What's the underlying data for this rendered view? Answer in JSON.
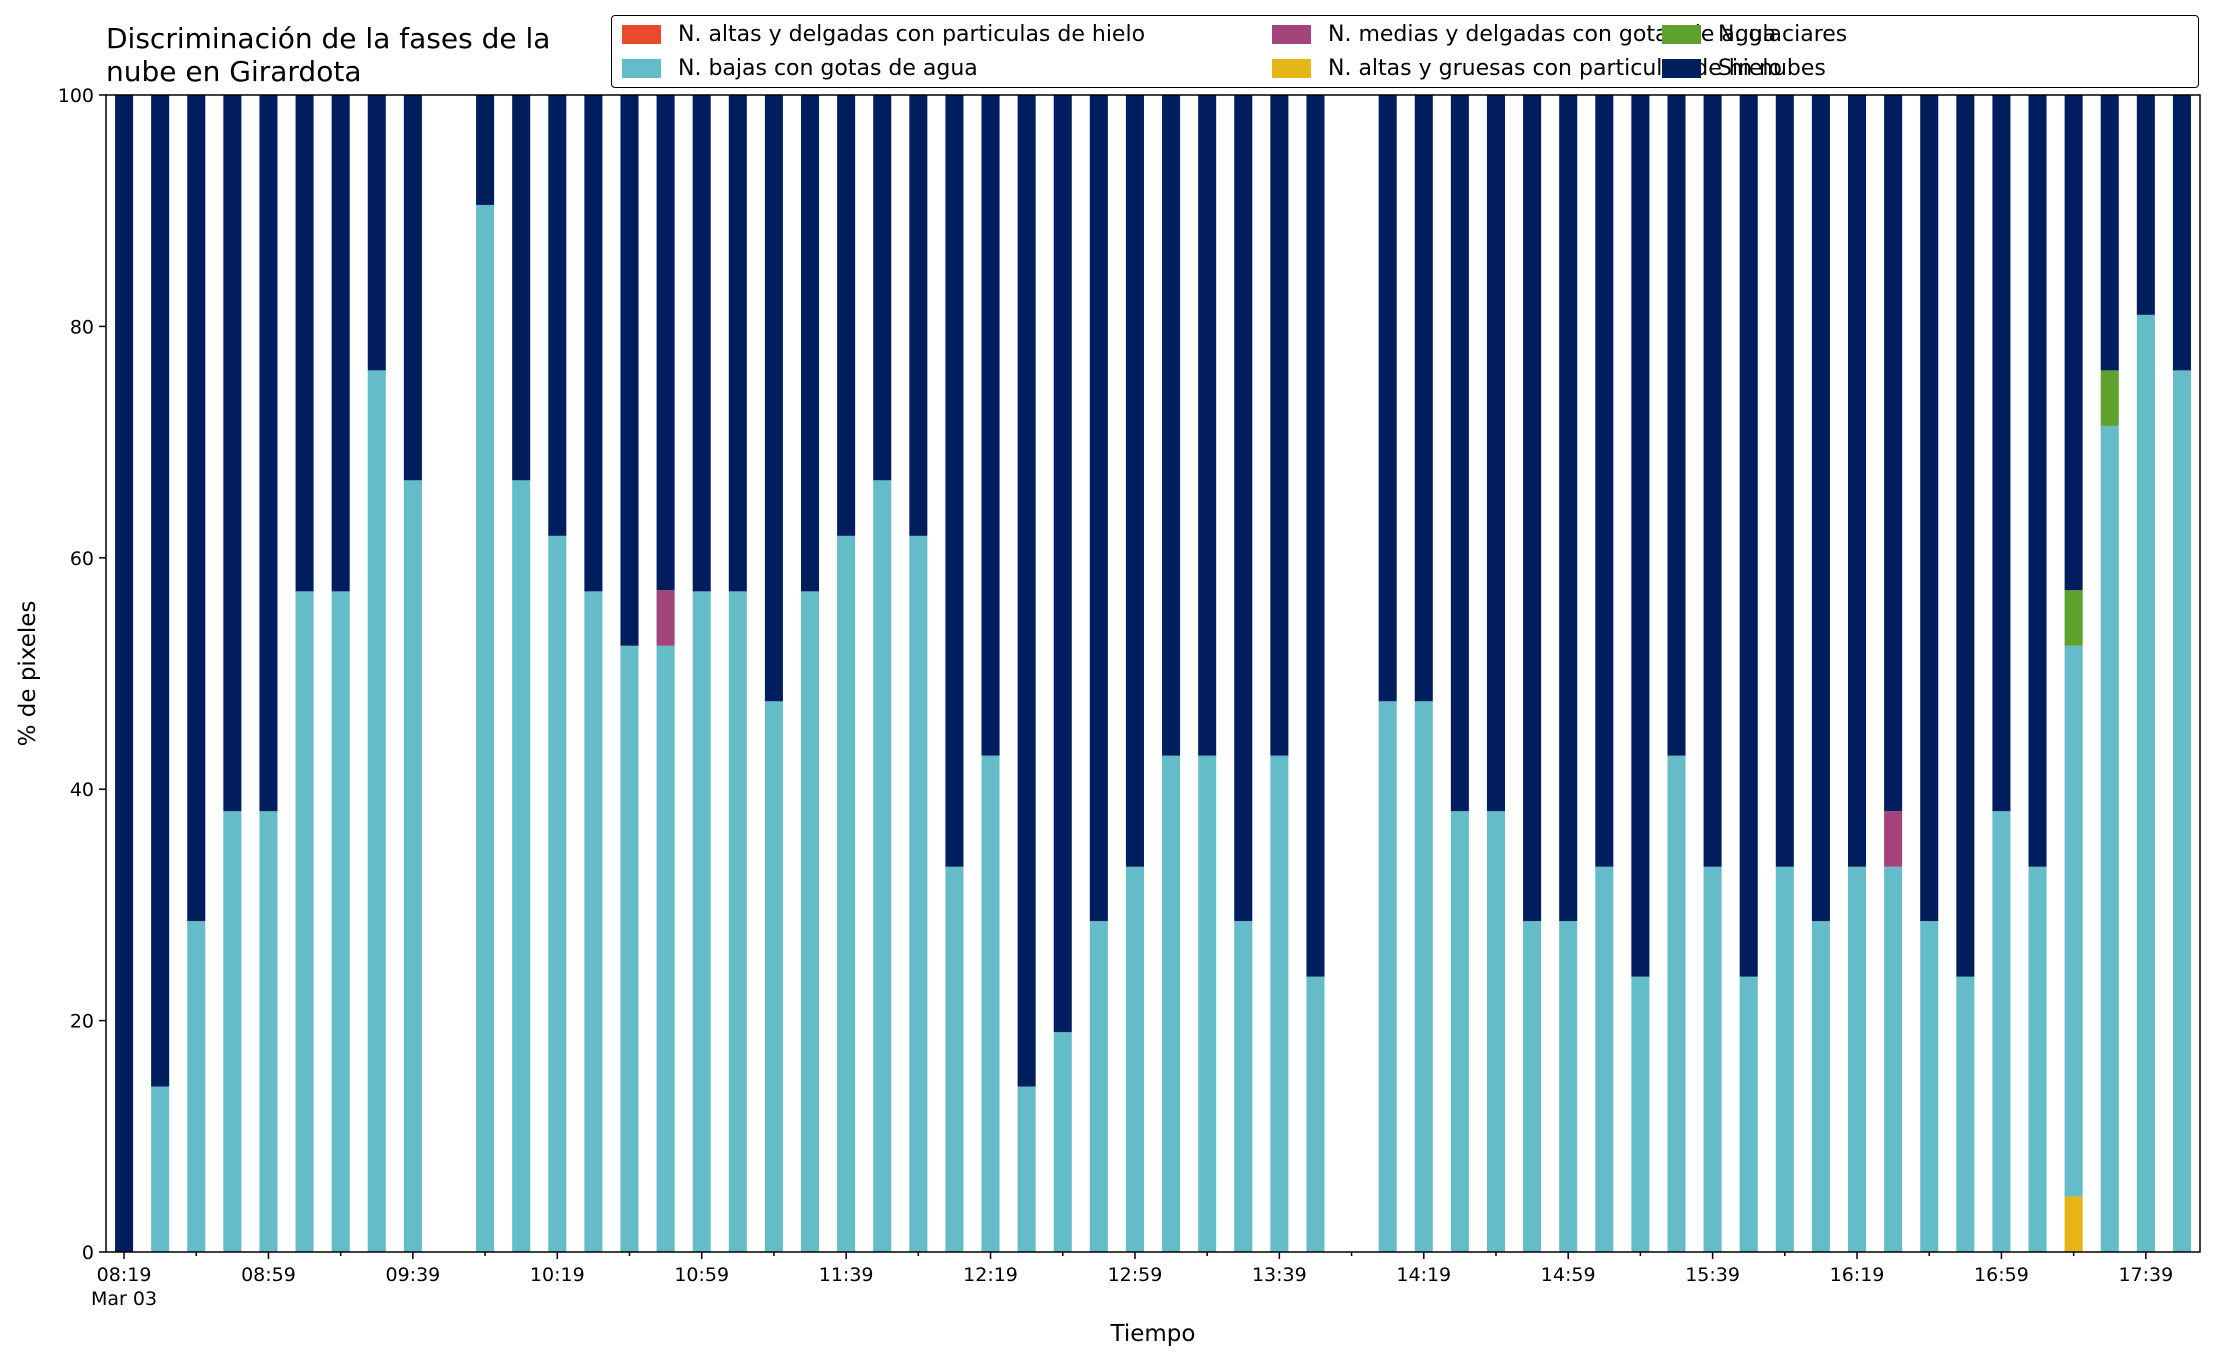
{
  "chart_data": {
    "type": "bar",
    "stacked": true,
    "title": "Discriminación de la fases de la nube en Girardota",
    "xlabel": "Tiempo",
    "ylabel": "% de pixeles",
    "ylim": [
      0,
      100
    ],
    "yticks": [
      0,
      20,
      40,
      60,
      80,
      100
    ],
    "grid": false,
    "legend_position": "top-right",
    "date_label": "Mar 03",
    "xtick_labels": [
      "08:19",
      "08:59",
      "09:39",
      "10:19",
      "10:59",
      "11:39",
      "12:19",
      "12:59",
      "13:39",
      "14:19",
      "14:59",
      "15:39",
      "16:19",
      "16:59",
      "17:39"
    ],
    "categories": [
      "08:19",
      "08:29",
      "08:39",
      "08:49",
      "08:59",
      "09:09",
      "09:19",
      "09:29",
      "09:39",
      "09:49",
      "09:59",
      "10:09",
      "10:19",
      "10:29",
      "10:39",
      "10:49",
      "10:59",
      "11:09",
      "11:19",
      "11:29",
      "11:39",
      "11:49",
      "11:59",
      "12:09",
      "12:19",
      "12:29",
      "12:39",
      "12:49",
      "12:59",
      "13:09",
      "13:19",
      "13:29",
      "13:39",
      "13:49",
      "13:59",
      "14:09",
      "14:19",
      "14:29",
      "14:39",
      "14:49",
      "14:59",
      "15:09",
      "15:19",
      "15:29",
      "15:39",
      "15:49",
      "15:59",
      "16:09",
      "16:19",
      "16:29",
      "16:39",
      "16:49",
      "16:59",
      "17:09",
      "17:19",
      "17:29",
      "17:39",
      "17:49"
    ],
    "series": [
      {
        "name": "N. altas y delgadas con particulas de hielo",
        "color": "#e9492e",
        "values": [
          0,
          0,
          0,
          0,
          0,
          0,
          0,
          0,
          0,
          null,
          0,
          0,
          0,
          0,
          0,
          0,
          0,
          0,
          0,
          0,
          0,
          0,
          0,
          0,
          0,
          0,
          0,
          0,
          0,
          0,
          0,
          0,
          0,
          0,
          null,
          0,
          0,
          0,
          0,
          0,
          0,
          0,
          0,
          0,
          0,
          0,
          0,
          0,
          0,
          0,
          0,
          0,
          0,
          0,
          0,
          0,
          0,
          0
        ]
      },
      {
        "name": "N. altas y gruesas con particulas de hielo",
        "color": "#e5b616",
        "values": [
          0,
          0,
          0,
          0,
          0,
          0,
          0,
          0,
          0,
          null,
          0,
          0,
          0,
          0,
          0,
          0,
          0,
          0,
          0,
          0,
          0,
          0,
          0,
          0,
          0,
          0,
          0,
          0,
          0,
          0,
          0,
          0,
          0,
          0,
          null,
          0,
          0,
          0,
          0,
          0,
          0,
          0,
          0,
          0,
          0,
          0,
          0,
          0,
          0,
          0,
          0,
          0,
          0,
          0,
          4.8,
          0,
          0,
          0
        ]
      },
      {
        "name": "N. bajas con gotas de agua",
        "color": "#64bcc9",
        "values": [
          0,
          14.3,
          28.6,
          38.1,
          38.1,
          57.1,
          57.1,
          76.2,
          66.7,
          null,
          90.5,
          66.7,
          61.9,
          57.1,
          52.4,
          52.4,
          57.1,
          57.1,
          47.6,
          57.1,
          61.9,
          66.7,
          61.9,
          33.3,
          42.9,
          14.3,
          19.0,
          28.6,
          33.3,
          42.9,
          42.9,
          28.6,
          42.9,
          23.8,
          null,
          47.6,
          47.6,
          38.1,
          38.1,
          28.6,
          28.6,
          33.3,
          23.8,
          42.9,
          33.3,
          23.8,
          33.3,
          28.6,
          33.3,
          33.3,
          28.6,
          23.8,
          38.1,
          33.3,
          47.6,
          71.4,
          81.0,
          76.2
        ]
      },
      {
        "name": "N. medias y delgadas con gotas de agua",
        "color": "#a3457a",
        "values": [
          0,
          0,
          0,
          0,
          0,
          0,
          0,
          0,
          0,
          null,
          0,
          0,
          0,
          0,
          0,
          4.8,
          0,
          0,
          0,
          0,
          0,
          0,
          0,
          0,
          0,
          0,
          0,
          0,
          0,
          0,
          0,
          0,
          0,
          0,
          null,
          0,
          0,
          0,
          0,
          0,
          0,
          0,
          0,
          0,
          0,
          0,
          0,
          0,
          0,
          4.8,
          0,
          0,
          0,
          0,
          0,
          0,
          0,
          0
        ]
      },
      {
        "name": "N. glaciares",
        "color": "#5ea12c",
        "values": [
          0,
          0,
          0,
          0,
          0,
          0,
          0,
          0,
          0,
          null,
          0,
          0,
          0,
          0,
          0,
          0,
          0,
          0,
          0,
          0,
          0,
          0,
          0,
          0,
          0,
          0,
          0,
          0,
          0,
          0,
          0,
          0,
          0,
          0,
          null,
          0,
          0,
          0,
          0,
          0,
          0,
          0,
          0,
          0,
          0,
          0,
          0,
          0,
          0,
          0,
          0,
          0,
          0,
          0,
          4.8,
          4.8,
          0,
          0
        ]
      },
      {
        "name": "Sin nubes",
        "color": "#001e5e",
        "values": [
          100,
          85.7,
          71.4,
          61.9,
          61.9,
          42.9,
          42.9,
          23.8,
          33.3,
          null,
          9.5,
          33.3,
          38.1,
          42.9,
          47.6,
          42.8,
          42.9,
          42.9,
          52.4,
          42.9,
          38.1,
          33.3,
          38.1,
          66.7,
          57.1,
          85.7,
          81.0,
          71.4,
          66.7,
          57.1,
          57.1,
          71.4,
          57.1,
          76.2,
          null,
          52.4,
          52.4,
          61.9,
          61.9,
          71.4,
          71.4,
          66.7,
          76.2,
          57.1,
          66.7,
          76.2,
          66.7,
          71.4,
          66.7,
          61.9,
          71.4,
          76.2,
          61.9,
          66.7,
          42.8,
          23.8,
          19.0,
          23.8
        ]
      }
    ]
  }
}
